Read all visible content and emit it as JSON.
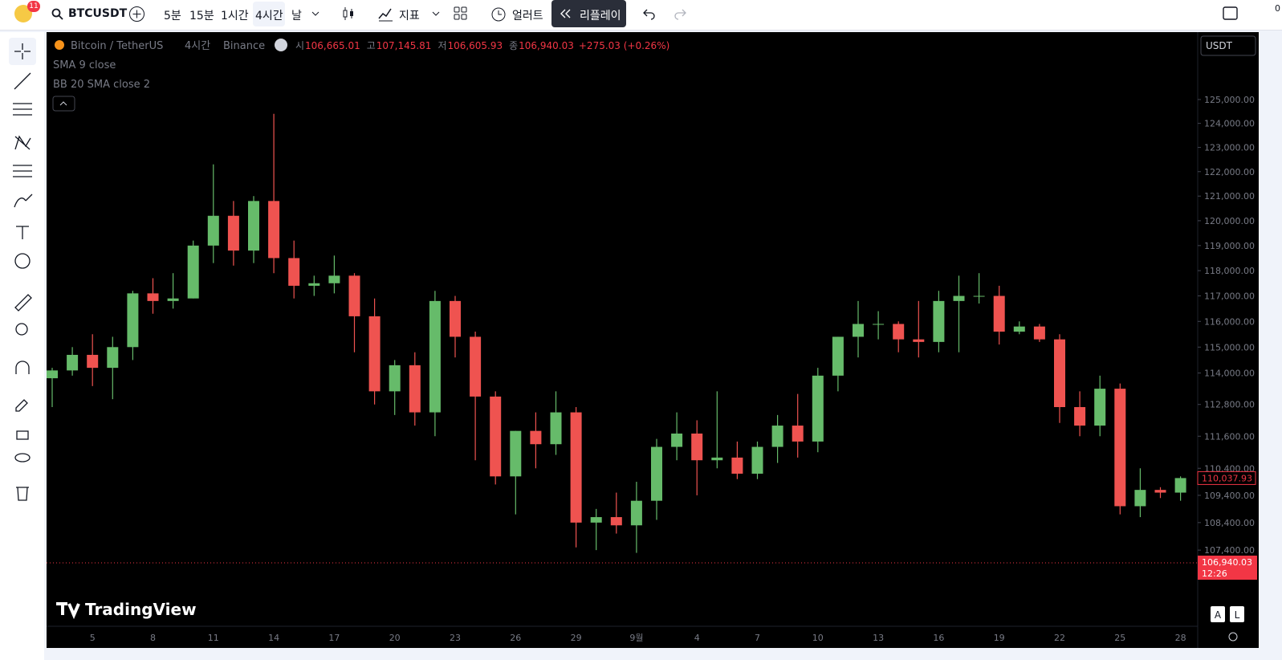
{
  "toolbar": {
    "badge": "11",
    "symbol": "BTCUSDT",
    "intervals": [
      "5분",
      "15분",
      "1시간",
      "4시간",
      "날"
    ],
    "indicators": "지표",
    "alert": "얼러트",
    "replay": "리플레이",
    "corner": "0"
  },
  "legend": {
    "name": "Bitcoin / TetherUS",
    "interval": "4시간",
    "exchange": "Binance",
    "ohlc": [
      {
        "key": "시",
        "value": "106,665.01"
      },
      {
        "key": "고",
        "value": "107,145.81"
      },
      {
        "key": "저",
        "value": "106,605.93"
      },
      {
        "key": "종",
        "value": "106,940.03"
      }
    ],
    "change": "+275.03 (+0.26%)",
    "studies": [
      "SMA 9 close",
      "BB 20 SMA close 2"
    ]
  },
  "currency": "USDT",
  "watermark": "TradingView",
  "scale_buttons": [
    "A",
    "L"
  ],
  "chart_data": {
    "type": "candlestick",
    "log_scale": true,
    "up_color": "#66bb6a",
    "down_color": "#ef5350",
    "categories": [
      null,
      null,
      "5",
      null,
      null,
      "8",
      null,
      null,
      "11",
      null,
      null,
      "14",
      null,
      null,
      "17",
      null,
      null,
      "20",
      null,
      null,
      "23",
      null,
      null,
      "26",
      null,
      null,
      "29",
      null,
      null,
      "9월",
      null,
      null,
      "4",
      null,
      null,
      "7",
      null,
      null,
      "10",
      null,
      null,
      "13",
      null,
      null,
      "16",
      null,
      null,
      "19",
      null,
      null,
      "22",
      null,
      null,
      "25",
      null,
      null,
      "28"
    ],
    "open": [
      113800,
      114100,
      114700,
      114200,
      115000,
      117100,
      116800,
      116900,
      119000,
      120200,
      118800,
      120800,
      118500,
      117400,
      117500,
      117800,
      116200,
      113300,
      114300,
      112500,
      116800,
      115400,
      113100,
      110100,
      111800,
      111300,
      112500,
      108400,
      108600,
      108300,
      109200,
      111200,
      111700,
      110700,
      110800,
      110200,
      111200,
      112000,
      111400,
      113900,
      115400,
      115900,
      115900,
      115300,
      115200,
      116800,
      117000,
      117000,
      115600,
      115800,
      115300,
      112700,
      112000,
      113400,
      109000,
      109600,
      109500
    ],
    "high": [
      114200,
      115000,
      115500,
      115400,
      117200,
      117700,
      117900,
      119200,
      122300,
      120800,
      121000,
      124400,
      119200,
      117800,
      118600,
      117900,
      116900,
      114500,
      114800,
      117200,
      117000,
      115600,
      113300,
      111800,
      112500,
      113300,
      112700,
      108900,
      109500,
      109900,
      111500,
      112500,
      112200,
      113300,
      111400,
      111400,
      112400,
      113200,
      114200,
      115400,
      116800,
      116400,
      116000,
      116800,
      117200,
      117800,
      117900,
      117400,
      116000,
      115900,
      115500,
      113300,
      113900,
      113600,
      110400,
      109700,
      110100
    ],
    "low": [
      112700,
      113900,
      113500,
      113000,
      114500,
      116300,
      116500,
      116900,
      118300,
      118200,
      118300,
      117900,
      116900,
      117000,
      117100,
      114800,
      112800,
      112400,
      112000,
      111600,
      114600,
      110700,
      109800,
      108700,
      110400,
      110900,
      107500,
      107400,
      108000,
      107300,
      108500,
      110700,
      109400,
      110400,
      110000,
      110000,
      110600,
      110800,
      111000,
      113300,
      114600,
      115300,
      114800,
      114600,
      114800,
      114800,
      116700,
      115100,
      115500,
      115200,
      112100,
      111600,
      111600,
      108700,
      108600,
      109300,
      109200
    ],
    "close": [
      114100,
      114700,
      114200,
      115000,
      117100,
      116800,
      116900,
      119000,
      120200,
      118800,
      120800,
      118500,
      117400,
      117500,
      117800,
      116200,
      113300,
      114300,
      112500,
      116800,
      115400,
      113100,
      110100,
      111800,
      111300,
      112500,
      108400,
      108600,
      108300,
      109200,
      111200,
      111700,
      110700,
      110800,
      110200,
      111200,
      112000,
      111400,
      113900,
      115400,
      115900,
      115900,
      115300,
      115200,
      116800,
      117000,
      117000,
      115600,
      115800,
      115300,
      112700,
      112000,
      113400,
      109000,
      109600,
      109500,
      110037.93
    ],
    "ylim": [
      104680,
      127870
    ],
    "yticks": [
      {
        "value": 125000,
        "label": "125,000.00"
      },
      {
        "value": 124000,
        "label": "124,000.00"
      },
      {
        "value": 123000,
        "label": "123,000.00"
      },
      {
        "value": 122000,
        "label": "122,000.00"
      },
      {
        "value": 121000,
        "label": "121,000.00"
      },
      {
        "value": 120000,
        "label": "120,000.00"
      },
      {
        "value": 119000,
        "label": "119,000.00"
      },
      {
        "value": 118000,
        "label": "118,000.00"
      },
      {
        "value": 117000,
        "label": "117,000.00"
      },
      {
        "value": 116000,
        "label": "116,000.00"
      },
      {
        "value": 115000,
        "label": "115,000.00"
      },
      {
        "value": 114000,
        "label": "114,000.00"
      },
      {
        "value": 112800,
        "label": "112,800.00"
      },
      {
        "value": 111600,
        "label": "111,600.00"
      },
      {
        "value": 110400,
        "label": "110,400.00"
      },
      {
        "value": 109400,
        "label": "109,400.00"
      },
      {
        "value": 108400,
        "label": "108,400.00"
      },
      {
        "value": 107400,
        "label": "107,400.00"
      }
    ],
    "last_price": {
      "value": 110037.93,
      "label": "110,037.93"
    },
    "crosshair": {
      "value": 106940.03,
      "label": "106,940.03",
      "time": "12:26"
    }
  }
}
